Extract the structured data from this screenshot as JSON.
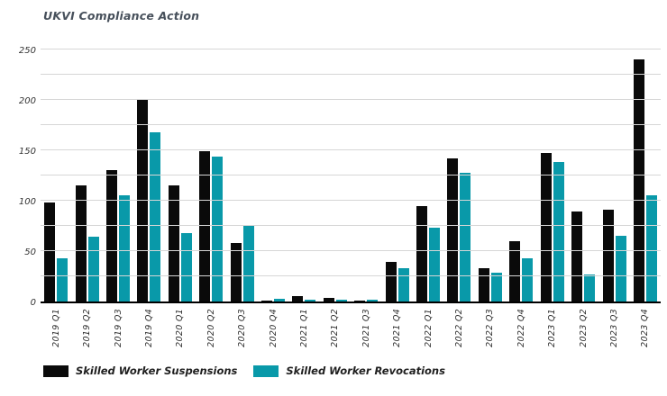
{
  "title": "UKVI Compliance Action",
  "chart_data": {
    "type": "bar",
    "title": "UKVI Compliance Action",
    "categories": [
      "2019 Q1",
      "2019 Q2",
      "2019 Q3",
      "2019 Q4",
      "2020 Q1",
      "2020 Q2",
      "2020 Q3",
      "2020 Q4",
      "2021 Q1",
      "2021 Q2",
      "2021 Q3",
      "2021 Q4",
      "2022 Q1",
      "2022 Q2",
      "2022 Q3",
      "2022 Q4",
      "2023 Q1",
      "2023 Q2",
      "2023 Q3",
      "2023 Q4"
    ],
    "series": [
      {
        "name": "Skilled Worker Suspensions",
        "color": "#0a0a0a",
        "values": [
          98,
          115,
          130,
          200,
          115,
          149,
          58,
          1,
          5,
          4,
          1,
          39,
          95,
          142,
          33,
          60,
          147,
          89,
          91,
          240
        ]
      },
      {
        "name": "Skilled Worker Revocations",
        "color": "#0999a9",
        "values": [
          43,
          64,
          105,
          168,
          68,
          144,
          76,
          3,
          2,
          2,
          2,
          33,
          73,
          128,
          29,
          43,
          138,
          27,
          65,
          105
        ]
      }
    ],
    "xlabel": "",
    "ylabel": "",
    "ylim": [
      0,
      250
    ],
    "yticks": [
      0,
      50,
      100,
      150,
      200,
      250
    ],
    "grid_interval": 25,
    "grid": true,
    "legend_position": "bottom"
  },
  "colors": {
    "title_text": "#47505b",
    "grid_line": "#d6d6d6",
    "axis_line": "#000000",
    "tick_text": "#333333",
    "legend_text": "#1f1f1f",
    "background": "#ffffff"
  }
}
